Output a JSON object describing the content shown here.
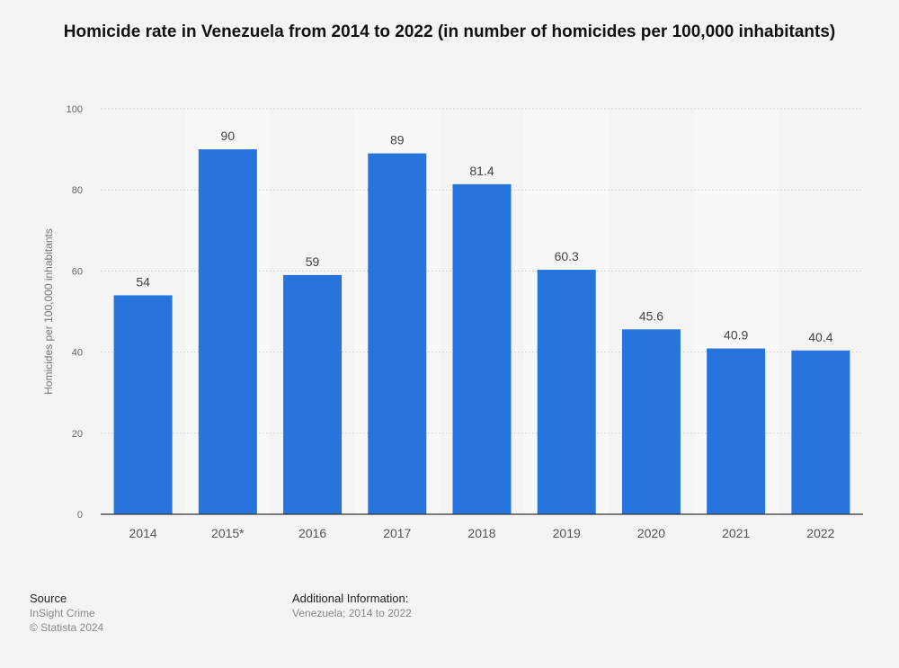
{
  "chart_data": {
    "type": "bar",
    "title": "Homicide rate in Venezuela from 2014 to 2022 (in number of homicides per 100,000 inhabitants)",
    "xlabel": "",
    "ylabel": "Homicides per 100,000 inhabitants",
    "ylim": [
      0,
      100
    ],
    "yticks": [
      0,
      20,
      40,
      60,
      80,
      100
    ],
    "grid": true,
    "categories": [
      "2014",
      "2015*",
      "2016",
      "2017",
      "2018",
      "2019",
      "2020",
      "2021",
      "2022"
    ],
    "values": [
      54,
      90,
      59,
      89,
      81.4,
      60.3,
      45.6,
      40.9,
      40.4
    ],
    "value_labels": [
      "54",
      "90",
      "59",
      "89",
      "81.4",
      "60.3",
      "45.6",
      "40.9",
      "40.4"
    ],
    "bar_color": "#2775dc"
  },
  "footer": {
    "source_heading": "Source",
    "source_lines": [
      "InSight Crime",
      "© Statista 2024"
    ],
    "info_heading": "Additional Information:",
    "info_lines": [
      "Venezuela; 2014 to 2022"
    ]
  }
}
